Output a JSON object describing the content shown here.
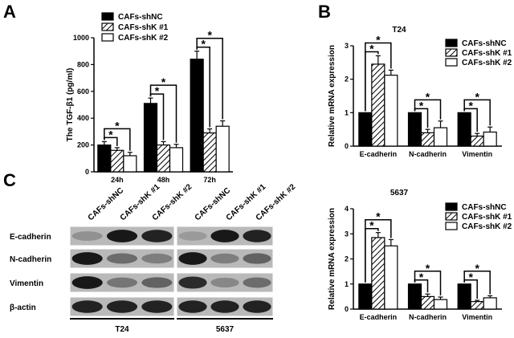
{
  "panels": {
    "A": "A",
    "B": "B",
    "C": "C"
  },
  "legend_labels": [
    "CAFs-shNC",
    "CAFs-shK #1",
    "CAFs-shK #2"
  ],
  "significance_mark": "*",
  "chart_data": [
    {
      "id": "A",
      "type": "bar",
      "title": "",
      "xlabel": "",
      "ylabel": "The TGF-β1 (pg/ml)",
      "categories": [
        "24h",
        "48h",
        "72h"
      ],
      "series": [
        {
          "name": "CAFs-shNC",
          "values": [
            200,
            510,
            840
          ],
          "errors": [
            25,
            40,
            60
          ]
        },
        {
          "name": "CAFs-shK #1",
          "values": [
            160,
            200,
            290
          ],
          "errors": [
            20,
            25,
            30
          ]
        },
        {
          "name": "CAFs-shK #2",
          "values": [
            120,
            180,
            340
          ],
          "errors": [
            25,
            25,
            40
          ]
        }
      ],
      "ylim": [
        0,
        1000
      ],
      "yticks": [
        0,
        200,
        400,
        600,
        800,
        1000
      ],
      "legend": "top-left",
      "significance": [
        [
          0,
          1
        ],
        [
          0,
          2
        ]
      ]
    },
    {
      "id": "B1",
      "type": "bar",
      "title": "T24",
      "xlabel": "",
      "ylabel": "Relative mRNA expression",
      "categories": [
        "E-cadherin",
        "N-cadherin",
        "Vimentin"
      ],
      "series": [
        {
          "name": "CAFs-shNC",
          "values": [
            1.0,
            1.0,
            1.0
          ],
          "errors": [
            0,
            0,
            0
          ]
        },
        {
          "name": "CAFs-shK #1",
          "values": [
            2.45,
            0.4,
            0.3
          ],
          "errors": [
            0.25,
            0.1,
            0.08
          ]
        },
        {
          "name": "CAFs-shK #2",
          "values": [
            2.12,
            0.55,
            0.42
          ],
          "errors": [
            0.15,
            0.2,
            0.15
          ]
        }
      ],
      "ylim": [
        0,
        3
      ],
      "yticks": [
        0,
        1,
        2,
        3
      ],
      "legend": "top-right",
      "significance": [
        [
          0,
          1
        ],
        [
          0,
          2
        ]
      ]
    },
    {
      "id": "B2",
      "type": "bar",
      "title": "5637",
      "xlabel": "",
      "ylabel": "Relative mRNA expression",
      "categories": [
        "E-cadherin",
        "N-cadherin",
        "Vimentin"
      ],
      "series": [
        {
          "name": "CAFs-shNC",
          "values": [
            1.0,
            1.0,
            1.0
          ],
          "errors": [
            0,
            0,
            0
          ]
        },
        {
          "name": "CAFs-shK #1",
          "values": [
            2.85,
            0.5,
            0.3
          ],
          "errors": [
            0.2,
            0.1,
            0.05
          ]
        },
        {
          "name": "CAFs-shK #2",
          "values": [
            2.52,
            0.38,
            0.45
          ],
          "errors": [
            0.25,
            0.1,
            0.08
          ]
        }
      ],
      "ylim": [
        0,
        4
      ],
      "yticks": [
        0,
        1,
        2,
        3,
        4
      ],
      "legend": "top-right",
      "significance": [
        [
          0,
          1
        ],
        [
          0,
          2
        ]
      ]
    }
  ],
  "western_blot": {
    "columns": [
      "CAFs-shNC",
      "CAFs-shK #1",
      "CAFs-shK #2"
    ],
    "rows": [
      "E-cadherin",
      "N-cadherin",
      "Vimentin",
      "β-actin"
    ],
    "cell_lines": [
      "T24",
      "5637"
    ],
    "intensity": {
      "T24": [
        [
          0.3,
          0.95,
          0.9
        ],
        [
          0.95,
          0.5,
          0.4
        ],
        [
          0.95,
          0.45,
          0.55
        ],
        [
          0.9,
          0.9,
          0.9
        ]
      ],
      "5637": [
        [
          0.25,
          0.95,
          0.9
        ],
        [
          0.95,
          0.4,
          0.55
        ],
        [
          0.85,
          0.35,
          0.5
        ],
        [
          0.9,
          0.9,
          0.9
        ]
      ]
    }
  }
}
